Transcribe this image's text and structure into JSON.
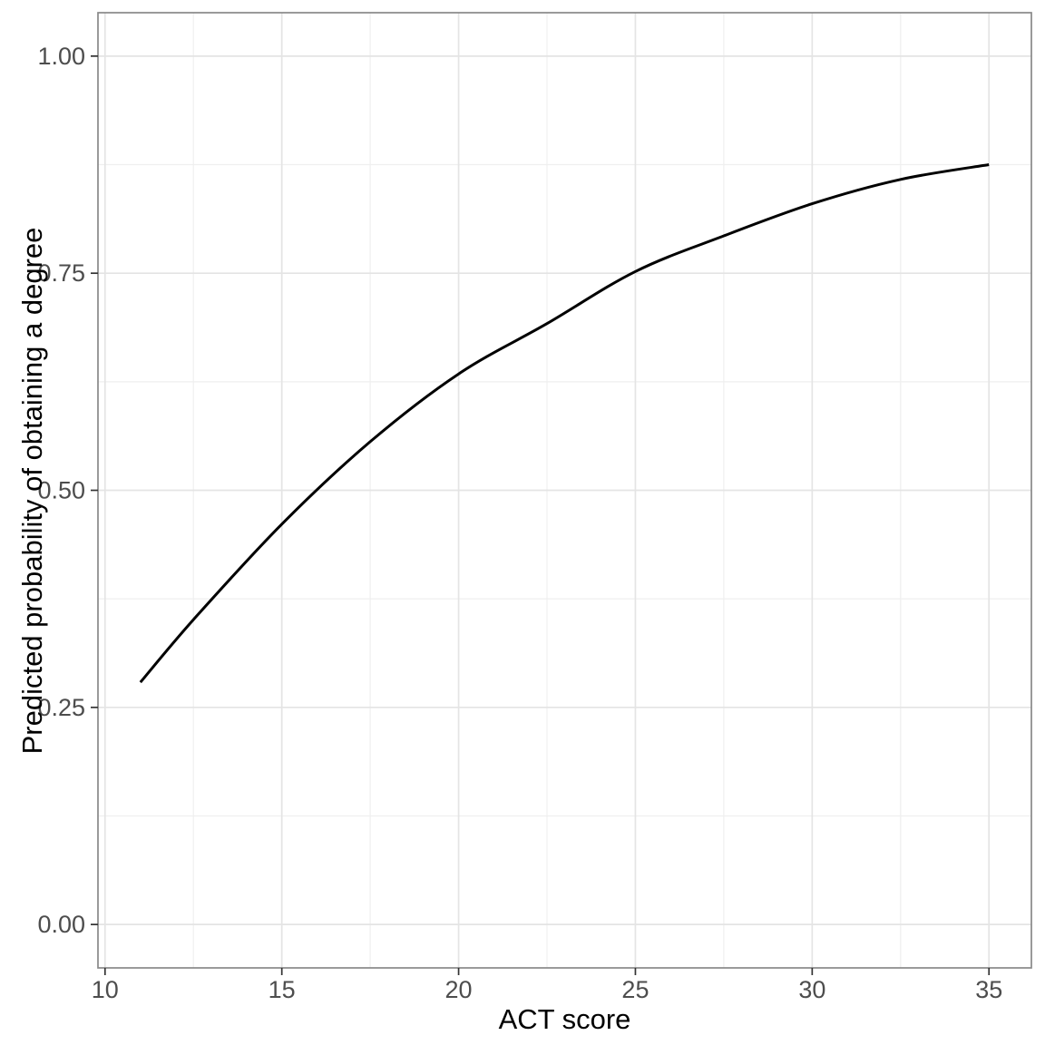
{
  "chart_data": {
    "type": "line",
    "title": "",
    "xlabel": "ACT score",
    "ylabel": "Predicted probability of obtaining a degree",
    "x_tick_labels": [
      "10",
      "15",
      "20",
      "25",
      "30",
      "35"
    ],
    "x_tick_values": [
      10,
      15,
      20,
      25,
      30,
      35
    ],
    "y_tick_labels": [
      "0.00",
      "0.25",
      "0.50",
      "0.75",
      "1.00"
    ],
    "y_tick_values": [
      0,
      0.25,
      0.5,
      0.75,
      1
    ],
    "x_minor_ticks": [
      12.5,
      17.5,
      22.5,
      27.5,
      32.5
    ],
    "y_minor_ticks": [
      0.125,
      0.375,
      0.625,
      0.875
    ],
    "xlim": [
      9.8,
      36.2
    ],
    "ylim": [
      -0.05,
      1.05
    ],
    "grid": "major and minor, light gray on white panel",
    "legend_position": "none",
    "series": [
      {
        "name": "Predicted probability of obtaining a degree",
        "x": [
          11,
          12.5,
          15,
          17.5,
          20,
          22.5,
          25,
          27.5,
          30,
          32.5,
          35
        ],
        "y": [
          0.279,
          0.351,
          0.461,
          0.556,
          0.634,
          0.692,
          0.752,
          0.793,
          0.83,
          0.858,
          0.875
        ]
      }
    ],
    "colors": {
      "line": "#000000",
      "grid_major": "#E4E4E4",
      "grid_minor": "#EFEFEF",
      "panel_border": "#898989",
      "tick_mark": "#333333",
      "tick_label": "#4D4D4D",
      "axis_title": "#000000",
      "background": "#FFFFFF"
    }
  }
}
